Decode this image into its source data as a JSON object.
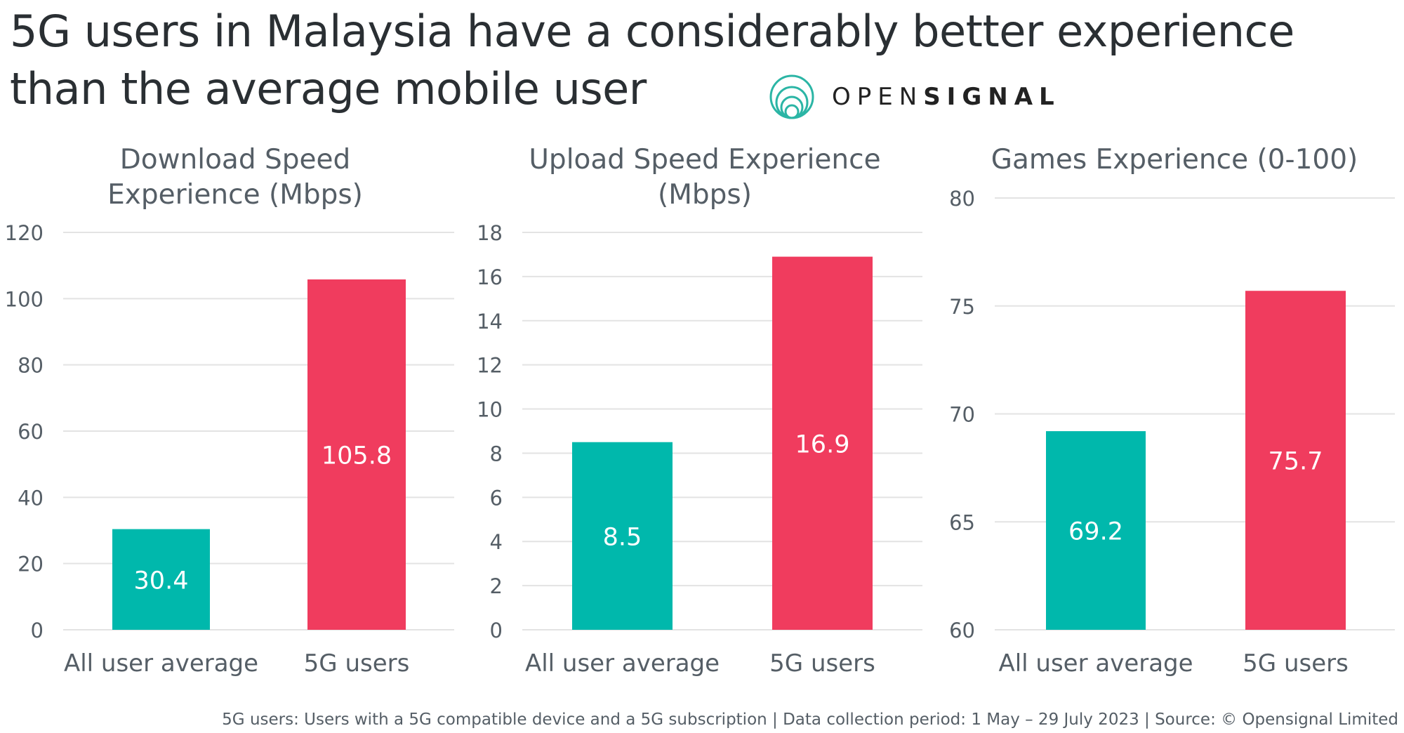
{
  "title": "5G users in Malaysia have a considerably better experience than the average mobile user",
  "logo": {
    "light": "OPEN",
    "bold": "SIGNAL"
  },
  "footer": "5G users: Users with a 5G compatible device and a 5G subscription | Data collection period: 1 May – 29 July 2023 | Source:  © Opensignal Limited",
  "colors": {
    "all_user_average": "#00B8AC",
    "5g_users": "#F03C5E",
    "text": "#555e66",
    "grid": "#e3e3e3"
  },
  "chart_data": [
    {
      "type": "bar",
      "title": [
        "Download Speed",
        "Experience (Mbps)"
      ],
      "categories": [
        "All user average",
        "5G users"
      ],
      "values": [
        30.4,
        105.8
      ],
      "ylim": [
        0,
        120
      ],
      "yticks": [
        0,
        20,
        40,
        60,
        80,
        100,
        120
      ],
      "grid": true
    },
    {
      "type": "bar",
      "title": [
        "Upload Speed Experience",
        "(Mbps)"
      ],
      "categories": [
        "All user average",
        "5G users"
      ],
      "values": [
        8.5,
        16.9
      ],
      "ylim": [
        0,
        18
      ],
      "yticks": [
        0,
        2,
        4,
        6,
        8,
        10,
        12,
        14,
        16,
        18
      ],
      "grid": true
    },
    {
      "type": "bar",
      "title": [
        "Games Experience (0-100)"
      ],
      "categories": [
        "All user average",
        "5G users"
      ],
      "values": [
        69.2,
        75.7
      ],
      "ylim": [
        60,
        80
      ],
      "yticks": [
        60,
        65,
        70,
        75,
        80
      ],
      "grid": true
    }
  ]
}
